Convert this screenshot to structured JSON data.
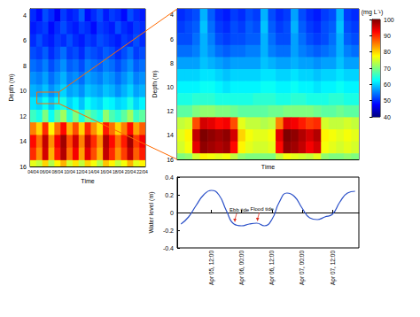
{
  "chart_data": [
    {
      "type": "heatmap",
      "xlabel": "Time",
      "ylabel": "Depth (m)",
      "x": [
        "04/04",
        null,
        "06/04",
        null,
        "08/04",
        null,
        "10/04",
        null,
        "12/04",
        null,
        "14/04",
        null,
        "16/04",
        null,
        "18/04",
        null,
        "20/04",
        null,
        "22/04"
      ],
      "ylim": [
        16,
        3.5
      ],
      "yticks": [
        4,
        6,
        8,
        10,
        12,
        14,
        16
      ],
      "grid": false,
      "depths": [
        4,
        5,
        6,
        7,
        8,
        9,
        10,
        11,
        12,
        13,
        14,
        15,
        16
      ],
      "values": [
        [
          50,
          48,
          52,
          50,
          47,
          51,
          49,
          50,
          53,
          48,
          50,
          52,
          49,
          51,
          50,
          48,
          52,
          50,
          49
        ],
        [
          49,
          50,
          51,
          48,
          50,
          52,
          50,
          49,
          51,
          50,
          48,
          51,
          50,
          49,
          52,
          50,
          49,
          51,
          50
        ],
        [
          50,
          52,
          50,
          49,
          51,
          50,
          52,
          50,
          49,
          51,
          50,
          52,
          51,
          50,
          49,
          51,
          50,
          52,
          50
        ],
        [
          52,
          51,
          53,
          50,
          52,
          54,
          51,
          52,
          50,
          53,
          52,
          51,
          53,
          52,
          50,
          52,
          54,
          51,
          52
        ],
        [
          54,
          53,
          55,
          52,
          54,
          56,
          53,
          54,
          52,
          55,
          54,
          53,
          55,
          54,
          52,
          54,
          56,
          53,
          54
        ],
        [
          56,
          55,
          57,
          54,
          56,
          58,
          55,
          56,
          54,
          57,
          56,
          55,
          57,
          56,
          54,
          56,
          58,
          55,
          56
        ],
        [
          58,
          57,
          59,
          56,
          58,
          60,
          57,
          58,
          56,
          59,
          58,
          57,
          59,
          58,
          56,
          58,
          60,
          57,
          58
        ],
        [
          61,
          60,
          63,
          59,
          62,
          64,
          60,
          62,
          59,
          63,
          61,
          60,
          63,
          62,
          60,
          61,
          64,
          60,
          62
        ],
        [
          66,
          64,
          70,
          63,
          68,
          72,
          65,
          70,
          64,
          69,
          66,
          64,
          71,
          67,
          65,
          68,
          72,
          66,
          68
        ],
        [
          85,
          80,
          90,
          78,
          86,
          92,
          82,
          88,
          80,
          90,
          84,
          79,
          91,
          86,
          80,
          85,
          92,
          83,
          87
        ],
        [
          92,
          86,
          96,
          84,
          93,
          98,
          88,
          95,
          85,
          96,
          90,
          84,
          97,
          92,
          86,
          91,
          98,
          89,
          93
        ],
        [
          90,
          84,
          95,
          82,
          91,
          97,
          86,
          93,
          83,
          94,
          88,
          82,
          96,
          90,
          84,
          89,
          96,
          87,
          91
        ],
        [
          76,
          74,
          80,
          73,
          78,
          82,
          75,
          79,
          74,
          80,
          77,
          73,
          81,
          78,
          74,
          77,
          82,
          76,
          78
        ]
      ]
    },
    {
      "type": "heatmap",
      "xlabel": "Time",
      "ylabel": "Depth (m)",
      "tick_labels": "y",
      "x": [
        null,
        null,
        null,
        null,
        "Apr 05, 12:00",
        null,
        null,
        null,
        "Apr 06, 00:00",
        null,
        null,
        null,
        "Apr 06, 12:00",
        null,
        null,
        null,
        "Apr 07, 00:00",
        null,
        null,
        null,
        "Apr 07, 12:00",
        null,
        null,
        null
      ],
      "ylim": [
        16,
        3.5
      ],
      "yticks": [
        4,
        6,
        8,
        10,
        12,
        14,
        16
      ],
      "grid": false,
      "depths": [
        4,
        5,
        6,
        7,
        8,
        9,
        10,
        11,
        12,
        13,
        14,
        15,
        16
      ],
      "values": [
        [
          50,
          51,
          52,
          58,
          53,
          50,
          49,
          51,
          50,
          52,
          51,
          58,
          52,
          50,
          51,
          57,
          52,
          50,
          49,
          51,
          52,
          58,
          51,
          50
        ],
        [
          51,
          52,
          53,
          59,
          54,
          51,
          50,
          52,
          51,
          53,
          52,
          59,
          53,
          51,
          52,
          58,
          53,
          51,
          50,
          52,
          53,
          59,
          52,
          51
        ],
        [
          52,
          52,
          54,
          58,
          55,
          52,
          51,
          52,
          52,
          53,
          53,
          58,
          54,
          52,
          52,
          57,
          54,
          52,
          51,
          52,
          54,
          58,
          53,
          52
        ],
        [
          54,
          54,
          55,
          58,
          56,
          54,
          53,
          54,
          54,
          55,
          55,
          58,
          55,
          54,
          54,
          57,
          55,
          54,
          53,
          54,
          55,
          58,
          55,
          54
        ],
        [
          57,
          57,
          57,
          59,
          58,
          57,
          56,
          57,
          57,
          57,
          57,
          59,
          58,
          57,
          57,
          58,
          57,
          57,
          56,
          57,
          57,
          59,
          57,
          57
        ],
        [
          60,
          60,
          60,
          61,
          61,
          60,
          59,
          60,
          60,
          60,
          60,
          61,
          61,
          60,
          60,
          61,
          60,
          60,
          59,
          60,
          60,
          61,
          60,
          60
        ],
        [
          62,
          62,
          62,
          63,
          63,
          62,
          61,
          62,
          62,
          62,
          62,
          63,
          63,
          62,
          62,
          63,
          62,
          62,
          61,
          62,
          62,
          63,
          62,
          62
        ],
        [
          64,
          64,
          65,
          65,
          65,
          64,
          64,
          64,
          64,
          64,
          65,
          65,
          65,
          64,
          64,
          65,
          65,
          64,
          64,
          64,
          65,
          65,
          64,
          64
        ],
        [
          68,
          68,
          70,
          71,
          71,
          70,
          70,
          69,
          68,
          68,
          68,
          68,
          69,
          69,
          70,
          70,
          70,
          70,
          69,
          68,
          68,
          69,
          68,
          68
        ],
        [
          74,
          75,
          88,
          95,
          94,
          92,
          93,
          88,
          76,
          74,
          74,
          73,
          74,
          85,
          94,
          93,
          91,
          89,
          90,
          75,
          74,
          74,
          75,
          74
        ],
        [
          76,
          78,
          96,
          100,
          99,
          98,
          99,
          95,
          80,
          77,
          76,
          76,
          77,
          94,
          100,
          99,
          97,
          95,
          97,
          78,
          77,
          76,
          77,
          76
        ],
        [
          75,
          77,
          94,
          99,
          98,
          97,
          98,
          92,
          78,
          76,
          75,
          75,
          76,
          92,
          99,
          98,
          96,
          93,
          95,
          77,
          76,
          75,
          76,
          75
        ],
        [
          70,
          71,
          75,
          78,
          77,
          76,
          77,
          74,
          71,
          70,
          70,
          70,
          70,
          74,
          77,
          76,
          75,
          74,
          76,
          71,
          70,
          70,
          71,
          70
        ]
      ],
      "colorbar": {
        "label": "(mg L⁻¹)",
        "range": [
          40,
          100
        ],
        "ticks": [
          40,
          50,
          60,
          70,
          80,
          90,
          100
        ]
      }
    },
    {
      "type": "line",
      "ylabel": "Water level (m)",
      "color": "#2b50c8",
      "x": [
        null,
        null,
        null,
        null,
        "Apr 05, 12:00",
        null,
        null,
        null,
        "Apr 06, 00:00",
        null,
        null,
        null,
        "Apr 06, 12:00",
        null,
        null,
        null,
        "Apr 07, 00:00",
        null,
        null,
        null,
        "Apr 07, 12:00",
        null,
        null,
        null
      ],
      "values": [
        -0.13,
        -0.05,
        0.08,
        0.2,
        0.25,
        0.2,
        0.02,
        -0.13,
        -0.15,
        -0.13,
        -0.12,
        -0.15,
        -0.08,
        0.12,
        0.22,
        0.18,
        0.05,
        -0.06,
        -0.08,
        -0.05,
        -0.02,
        0.12,
        0.22,
        0.24
      ],
      "ylim": [
        -0.4,
        0.4
      ],
      "yticks": [
        -0.4,
        -0.2,
        0,
        0.2,
        0.4
      ],
      "grid": false,
      "annotations": [
        {
          "text": "Ebb tide",
          "point": 7
        },
        {
          "text": "Flood tide",
          "point": 10
        }
      ]
    }
  ]
}
